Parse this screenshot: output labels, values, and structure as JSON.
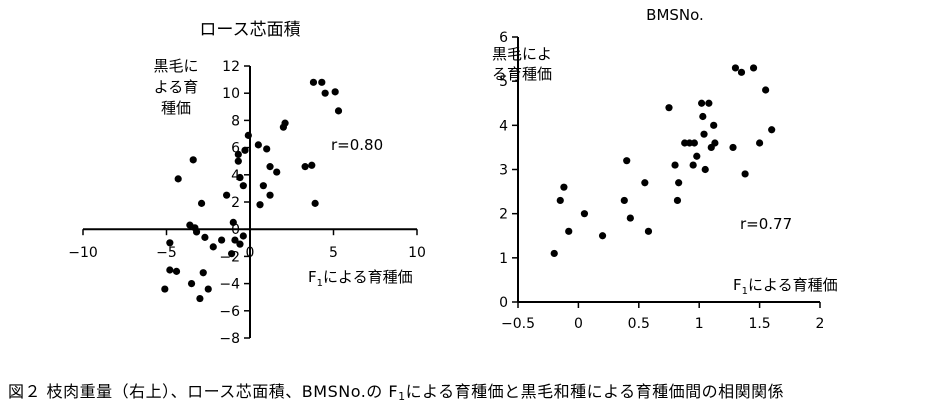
{
  "chart_data": [
    {
      "type": "scatter",
      "title": "ロース芯面積",
      "xlabel": {
        "main": "F",
        "sub": "1",
        "rest": "による育種価"
      },
      "ylabel_lines": [
        "黒毛に",
        "よる育",
        "種価"
      ],
      "annotation": "r=0.80",
      "xlim": [
        -10,
        10
      ],
      "ylim": [
        -8,
        12
      ],
      "xticks": [
        -10,
        -5,
        0,
        5,
        10
      ],
      "yticks": [
        -8,
        -6,
        -4,
        -2,
        0,
        2,
        4,
        6,
        8,
        10,
        12
      ],
      "xtick_labels": [
        "−10",
        "−5",
        "0",
        "5",
        "10"
      ],
      "ytick_labels": [
        "−8",
        "−6",
        "−4",
        "−2",
        "0",
        "2",
        "4",
        "6",
        "8",
        "10",
        "12"
      ],
      "grid": false,
      "points": [
        [
          3.8,
          10.8
        ],
        [
          4.3,
          10.8
        ],
        [
          4.5,
          10.0
        ],
        [
          5.1,
          10.1
        ],
        [
          5.3,
          8.7
        ],
        [
          2.0,
          7.5
        ],
        [
          2.1,
          7.8
        ],
        [
          -0.1,
          6.9
        ],
        [
          0.5,
          6.2
        ],
        [
          1.0,
          5.9
        ],
        [
          -0.7,
          5.5
        ],
        [
          -0.7,
          5.0
        ],
        [
          -0.3,
          5.8
        ],
        [
          -3.4,
          5.1
        ],
        [
          -4.3,
          3.7
        ],
        [
          1.2,
          4.6
        ],
        [
          1.6,
          4.2
        ],
        [
          3.3,
          4.6
        ],
        [
          3.7,
          4.7
        ],
        [
          -0.6,
          3.8
        ],
        [
          -0.4,
          3.2
        ],
        [
          0.8,
          3.2
        ],
        [
          1.2,
          2.5
        ],
        [
          -1.4,
          2.5
        ],
        [
          -2.9,
          1.9
        ],
        [
          0.6,
          1.8
        ],
        [
          3.9,
          1.9
        ],
        [
          -3.6,
          0.3
        ],
        [
          -3.3,
          0.1
        ],
        [
          -3.2,
          -0.2
        ],
        [
          -1.0,
          0.5
        ],
        [
          -0.4,
          -0.5
        ],
        [
          -2.7,
          -0.6
        ],
        [
          -0.9,
          -0.8
        ],
        [
          -1.7,
          -0.8
        ],
        [
          -0.6,
          -1.1
        ],
        [
          -2.2,
          -1.3
        ],
        [
          -1.1,
          -1.8
        ],
        [
          -4.8,
          -1.0
        ],
        [
          -4.8,
          -3.0
        ],
        [
          -4.4,
          -3.1
        ],
        [
          -3.5,
          -4.0
        ],
        [
          -2.8,
          -3.2
        ],
        [
          -2.5,
          -4.4
        ],
        [
          -5.1,
          -4.4
        ],
        [
          -3.0,
          -5.1
        ]
      ]
    },
    {
      "type": "scatter",
      "title": "BMSNo.",
      "xlabel": {
        "main": "F",
        "sub": "1",
        "rest": "による育種価"
      },
      "ylabel_lines": [
        "黒毛によ",
        "る育種価"
      ],
      "annotation": "r=0.77",
      "xlim": [
        -0.5,
        2
      ],
      "ylim": [
        0,
        6
      ],
      "xticks": [
        -0.5,
        0,
        0.5,
        1,
        1.5,
        2
      ],
      "yticks": [
        0,
        1,
        2,
        3,
        4,
        5,
        6
      ],
      "xtick_labels": [
        "−0.5",
        "0",
        "0.5",
        "1",
        "1.5",
        "2"
      ],
      "ytick_labels": [
        "0",
        "1",
        "2",
        "3",
        "4",
        "5",
        "6"
      ],
      "grid": false,
      "points": [
        [
          -0.2,
          1.1
        ],
        [
          -0.15,
          2.3
        ],
        [
          -0.12,
          2.6
        ],
        [
          -0.08,
          1.6
        ],
        [
          0.05,
          2.0
        ],
        [
          0.2,
          1.5
        ],
        [
          0.38,
          2.3
        ],
        [
          0.4,
          3.2
        ],
        [
          0.43,
          1.9
        ],
        [
          0.55,
          2.7
        ],
        [
          0.58,
          1.6
        ],
        [
          0.75,
          4.4
        ],
        [
          0.8,
          3.1
        ],
        [
          0.82,
          2.3
        ],
        [
          0.83,
          2.7
        ],
        [
          0.88,
          3.6
        ],
        [
          0.92,
          3.6
        ],
        [
          0.95,
          3.1
        ],
        [
          0.96,
          3.6
        ],
        [
          0.98,
          3.3
        ],
        [
          1.02,
          4.5
        ],
        [
          1.03,
          4.2
        ],
        [
          1.04,
          3.8
        ],
        [
          1.05,
          3.0
        ],
        [
          1.08,
          4.5
        ],
        [
          1.1,
          3.5
        ],
        [
          1.12,
          4.0
        ],
        [
          1.13,
          3.6
        ],
        [
          1.28,
          3.5
        ],
        [
          1.3,
          5.3
        ],
        [
          1.35,
          5.2
        ],
        [
          1.38,
          2.9
        ],
        [
          1.45,
          5.3
        ],
        [
          1.5,
          3.6
        ],
        [
          1.55,
          4.8
        ],
        [
          1.6,
          3.9
        ]
      ]
    }
  ],
  "caption": {
    "prefix": "図２ 枝肉重量（右上）、ロース芯面積、BMSNo.の F",
    "sub": "1",
    "suffix": "による育種価と黒毛和種による育種価間の相関関係"
  }
}
